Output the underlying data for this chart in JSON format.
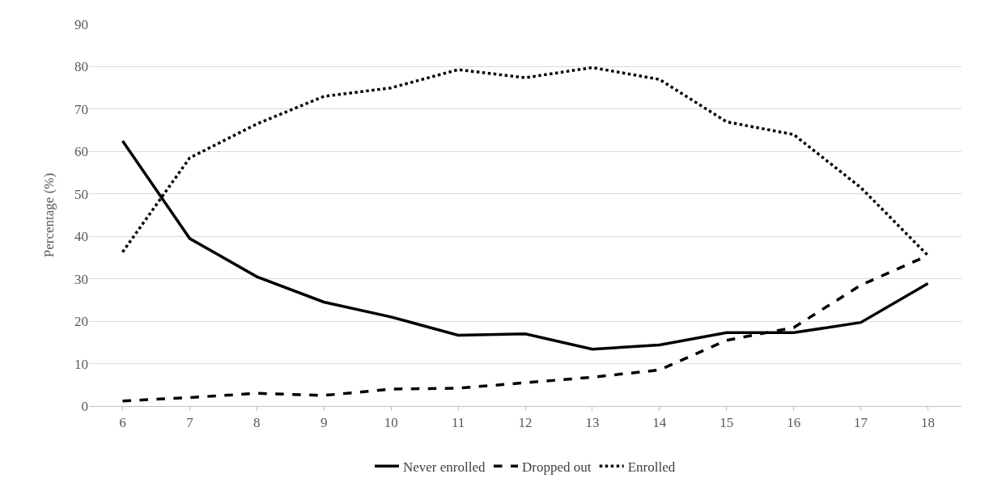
{
  "chart_data": {
    "type": "line",
    "ylabel": "Percentage (%)",
    "categories": [
      "6",
      "7",
      "8",
      "9",
      "10",
      "11",
      "12",
      "13",
      "14",
      "15",
      "16",
      "17",
      "18"
    ],
    "series": [
      {
        "name": "Never enrolled",
        "color": "#000000",
        "line_style": "solid",
        "values": [
          62.5,
          39.5,
          30.5,
          24.5,
          21,
          16.7,
          17,
          13.4,
          14.4,
          17.3,
          17.3,
          19.7,
          28.9
        ]
      },
      {
        "name": "Dropped out",
        "color": "#000000",
        "line_style": "dashed",
        "values": [
          1.2,
          2,
          3,
          2.5,
          4,
          4.2,
          5.5,
          6.8,
          8.5,
          15.5,
          18.5,
          28.5,
          35.5
        ]
      },
      {
        "name": "Enrolled",
        "color": "#000000",
        "line_style": "dotted",
        "values": [
          36.3,
          58.5,
          66.5,
          73,
          75,
          79.3,
          77.4,
          79.8,
          77,
          67,
          64,
          51.5,
          35.5
        ]
      }
    ],
    "ylim": [
      0,
      90
    ],
    "yticks": [
      0,
      10,
      20,
      30,
      40,
      50,
      60,
      70,
      80,
      90
    ],
    "grid": "y",
    "legend": "bottom",
    "marker": "none"
  }
}
